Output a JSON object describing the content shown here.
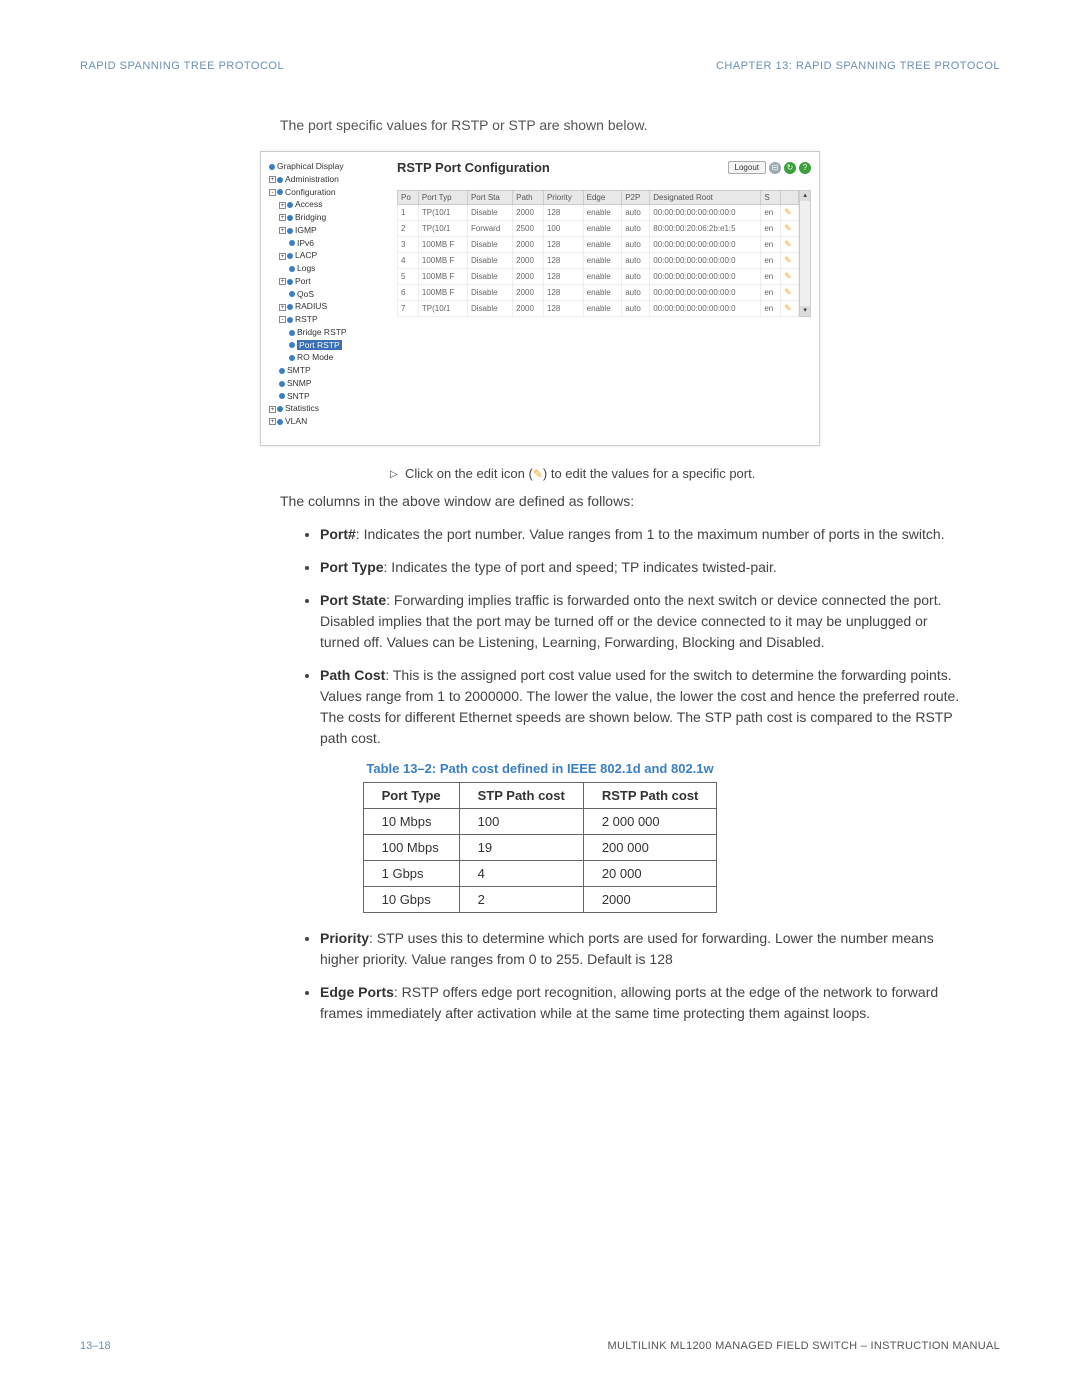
{
  "header": {
    "left": "RAPID SPANNING TREE PROTOCOL",
    "right": "CHAPTER 13: RAPID SPANNING TREE PROTOCOL"
  },
  "intro": "The port specific values for RSTP or STP are shown below.",
  "screenshot": {
    "title": "RSTP Port Configuration",
    "logout": "Logout",
    "tree": [
      {
        "lvl": 0,
        "exp": "",
        "label": "Graphical Display"
      },
      {
        "lvl": 0,
        "exp": "+",
        "label": "Administration"
      },
      {
        "lvl": 0,
        "exp": "-",
        "label": "Configuration"
      },
      {
        "lvl": 1,
        "exp": "+",
        "label": "Access"
      },
      {
        "lvl": 1,
        "exp": "+",
        "label": "Bridging"
      },
      {
        "lvl": 1,
        "exp": "+",
        "label": "IGMP"
      },
      {
        "lvl": 2,
        "exp": "",
        "label": "IPv6"
      },
      {
        "lvl": 1,
        "exp": "+",
        "label": "LACP"
      },
      {
        "lvl": 2,
        "exp": "",
        "label": "Logs"
      },
      {
        "lvl": 1,
        "exp": "+",
        "label": "Port"
      },
      {
        "lvl": 2,
        "exp": "",
        "label": "QoS"
      },
      {
        "lvl": 1,
        "exp": "+",
        "label": "RADIUS"
      },
      {
        "lvl": 1,
        "exp": "-",
        "label": "RSTP"
      },
      {
        "lvl": 2,
        "exp": "",
        "label": "Bridge RSTP"
      },
      {
        "lvl": 2,
        "exp": "",
        "label": "Port RSTP",
        "sel": true
      },
      {
        "lvl": 2,
        "exp": "",
        "label": "RO Mode"
      },
      {
        "lvl": 1,
        "exp": "",
        "label": "SMTP"
      },
      {
        "lvl": 1,
        "exp": "",
        "label": "SNMP"
      },
      {
        "lvl": 1,
        "exp": "",
        "label": "SNTP"
      },
      {
        "lvl": 0,
        "exp": "+",
        "label": "Statistics"
      },
      {
        "lvl": 0,
        "exp": "+",
        "label": "VLAN"
      }
    ],
    "cols": [
      "Po",
      "Port Typ",
      "Port Sta",
      "Path",
      "Priority",
      "Edge",
      "P2P",
      "Designated Root",
      "S",
      ""
    ],
    "rows": [
      [
        "1",
        "TP(10/1",
        "Disable",
        "2000",
        "128",
        "enable",
        "auto",
        "00:00:00:00:00:00:00:0",
        "en",
        "✎"
      ],
      [
        "2",
        "TP(10/1",
        "Forward",
        "2500",
        "100",
        "enable",
        "auto",
        "80:00:00:20:06:2b:e1:5",
        "en",
        "✎"
      ],
      [
        "3",
        "100MB F",
        "Disable",
        "2000",
        "128",
        "enable",
        "auto",
        "00:00:00:00:00:00:00:0",
        "en",
        "✎"
      ],
      [
        "4",
        "100MB F",
        "Disable",
        "2000",
        "128",
        "enable",
        "auto",
        "00:00:00:00:00:00:00:0",
        "en",
        "✎"
      ],
      [
        "5",
        "100MB F",
        "Disable",
        "2000",
        "128",
        "enable",
        "auto",
        "00:00:00:00:00:00:00:0",
        "en",
        "✎"
      ],
      [
        "6",
        "100MB F",
        "Disable",
        "2000",
        "128",
        "enable",
        "auto",
        "00:00:00:00:00:00:00:0",
        "en",
        "✎"
      ],
      [
        "7",
        "TP(10/1",
        "Disable",
        "2000",
        "128",
        "enable",
        "auto",
        "00:00:00:00:00:00:00:0",
        "en",
        "✎"
      ]
    ],
    "icon_colors": {
      "save": "#9aa8b5",
      "refresh": "#3aa03a",
      "help": "#3aa03a"
    }
  },
  "edit_note": {
    "pre": "Click on the edit icon (",
    "post": ") to edit the values for a specific port."
  },
  "cols_intro": "The columns in the above window are defined as follows:",
  "defs": [
    {
      "t": "Port#",
      "d": ": Indicates the port number. Value ranges from 1 to the maximum number of ports in the switch."
    },
    {
      "t": "Port Type",
      "d": ": Indicates the type of port and speed; TP indicates twisted-pair."
    },
    {
      "t": "Port State",
      "d": ": Forwarding implies traffic is forwarded onto the next switch or device connected the port. Disabled implies that the port may be turned off or the device connected to it may be unplugged or turned off. Values can be Listening, Learning, Forwarding, Blocking and Disabled."
    },
    {
      "t": "Path Cost",
      "d": ": This is the assigned port cost value used for the switch to determine the forwarding points. Values range from 1 to 2000000. The lower the value, the lower the cost and hence the preferred route. The costs for different Ethernet speeds are shown below. The STP path cost  is compared to the RSTP path cost."
    }
  ],
  "table_caption": "Table 13–2: Path cost defined in IEEE 802.1d and 802.1w",
  "cost_table": {
    "head": [
      "Port Type",
      "STP Path cost",
      "RSTP Path cost"
    ],
    "rows": [
      [
        "10 Mbps",
        "100",
        "2 000 000"
      ],
      [
        "100 Mbps",
        "19",
        "200 000"
      ],
      [
        "1 Gbps",
        "4",
        "20 000"
      ],
      [
        "10 Gbps",
        "2",
        "2000"
      ]
    ]
  },
  "defs2": [
    {
      "t": "Priority",
      "d": ": STP uses this to determine which ports are used for forwarding. Lower the number means higher priority. Value ranges from 0 to 255. Default is 128"
    },
    {
      "t": "Edge Ports",
      "d": ": RSTP offers edge port recognition, allowing ports at the edge of the network to forward frames immediately after activation while at the same time protecting them against loops."
    }
  ],
  "footer": {
    "left": "13–18",
    "right": "MULTILINK ML1200 MANAGED FIELD SWITCH – INSTRUCTION MANUAL"
  }
}
